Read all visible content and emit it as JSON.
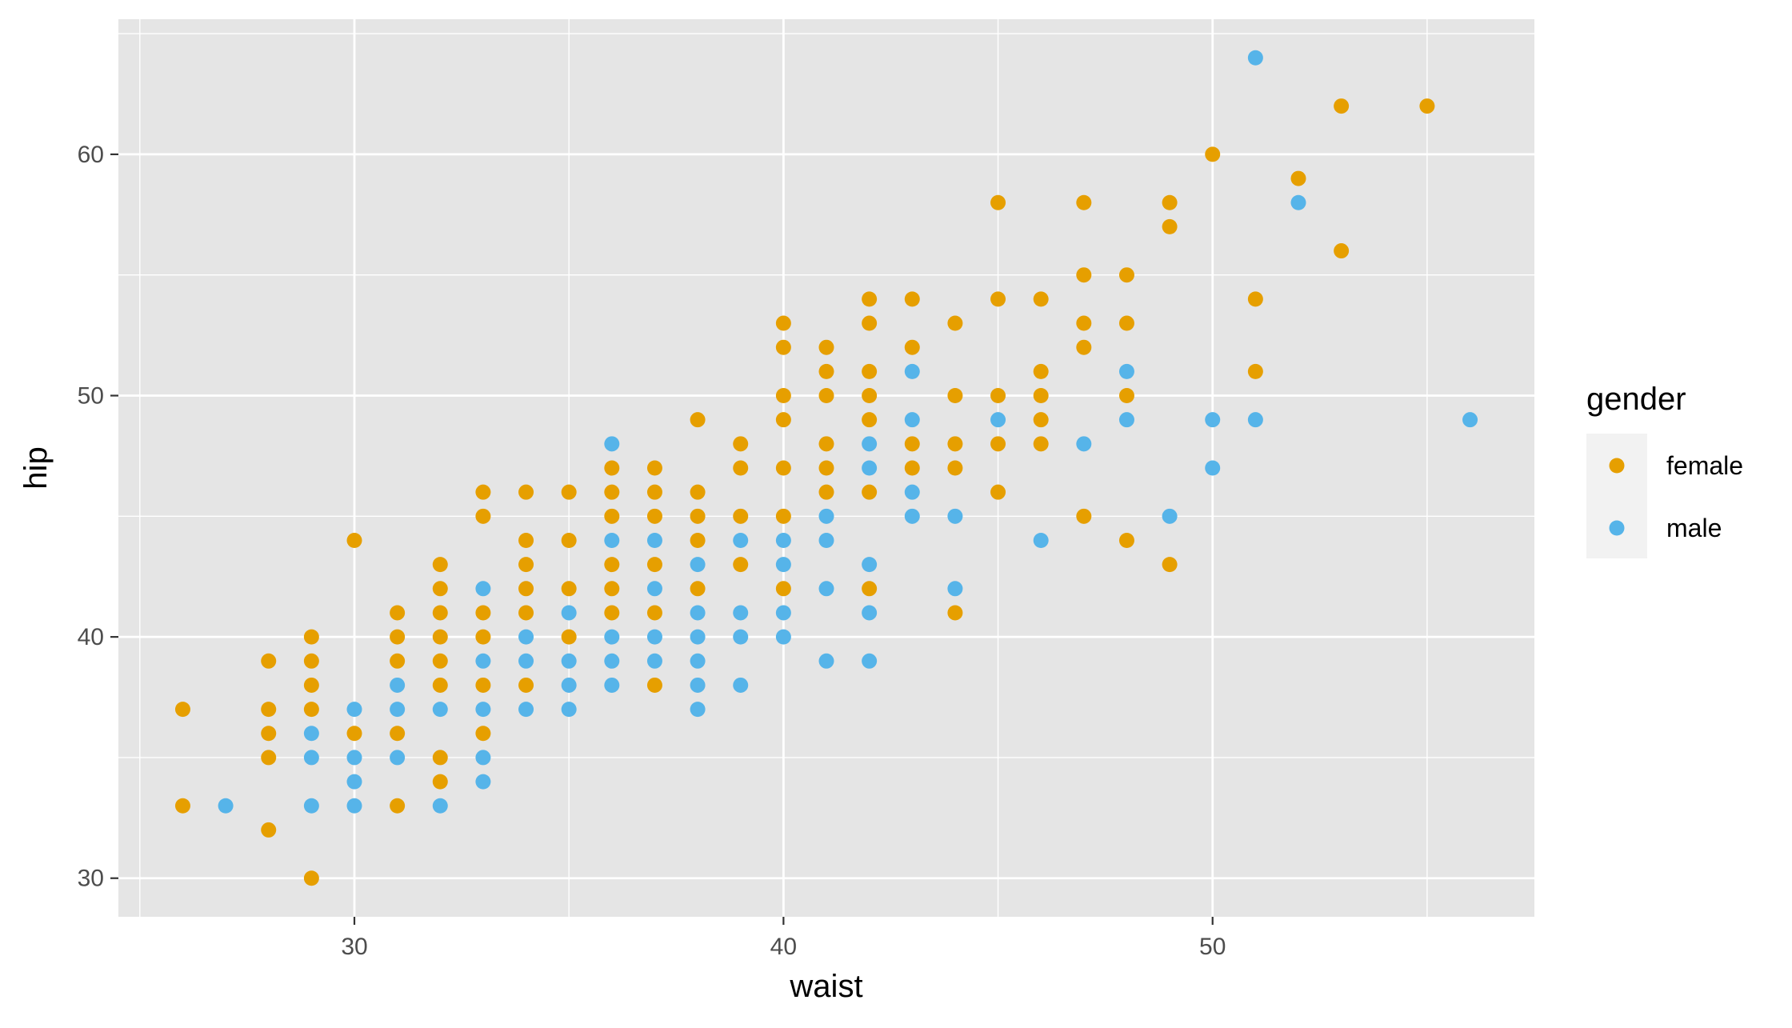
{
  "chart_data": {
    "type": "scatter",
    "title": "",
    "xlabel": "waist",
    "ylabel": "hip",
    "xlim": [
      24.5,
      57.5
    ],
    "ylim": [
      28.4,
      65.6
    ],
    "x_ticks": [
      30,
      40,
      50
    ],
    "y_ticks": [
      30,
      40,
      50,
      60
    ],
    "grid": true,
    "legend": {
      "title": "gender",
      "position": "right"
    },
    "colors": {
      "panel": "#e5e5e5",
      "grid": "#ffffff",
      "female": "#e69f00",
      "male": "#56b4e9"
    },
    "series": [
      {
        "name": "female",
        "points": [
          [
            26,
            37
          ],
          [
            26,
            33
          ],
          [
            28,
            39
          ],
          [
            28,
            37
          ],
          [
            28,
            36
          ],
          [
            28,
            35
          ],
          [
            28,
            32
          ],
          [
            29,
            40
          ],
          [
            29,
            39
          ],
          [
            29,
            38
          ],
          [
            29,
            37
          ],
          [
            29,
            30
          ],
          [
            30,
            44
          ],
          [
            30,
            36
          ],
          [
            31,
            41
          ],
          [
            31,
            40
          ],
          [
            31,
            39
          ],
          [
            31,
            36
          ],
          [
            31,
            33
          ],
          [
            32,
            43
          ],
          [
            32,
            42
          ],
          [
            32,
            41
          ],
          [
            32,
            40
          ],
          [
            32,
            39
          ],
          [
            32,
            38
          ],
          [
            32,
            35
          ],
          [
            32,
            34
          ],
          [
            33,
            46
          ],
          [
            33,
            45
          ],
          [
            33,
            41
          ],
          [
            33,
            40
          ],
          [
            33,
            38
          ],
          [
            33,
            36
          ],
          [
            34,
            46
          ],
          [
            34,
            44
          ],
          [
            34,
            43
          ],
          [
            34,
            42
          ],
          [
            34,
            41
          ],
          [
            34,
            38
          ],
          [
            35,
            46
          ],
          [
            35,
            44
          ],
          [
            35,
            42
          ],
          [
            35,
            40
          ],
          [
            36,
            47
          ],
          [
            36,
            46
          ],
          [
            36,
            45
          ],
          [
            36,
            43
          ],
          [
            36,
            42
          ],
          [
            36,
            41
          ],
          [
            37,
            47
          ],
          [
            37,
            46
          ],
          [
            37,
            45
          ],
          [
            37,
            43
          ],
          [
            37,
            41
          ],
          [
            37,
            38
          ],
          [
            38,
            49
          ],
          [
            38,
            46
          ],
          [
            38,
            45
          ],
          [
            38,
            44
          ],
          [
            38,
            42
          ],
          [
            39,
            48
          ],
          [
            39,
            47
          ],
          [
            39,
            45
          ],
          [
            39,
            43
          ],
          [
            40,
            53
          ],
          [
            40,
            52
          ],
          [
            40,
            50
          ],
          [
            40,
            49
          ],
          [
            40,
            47
          ],
          [
            40,
            45
          ],
          [
            40,
            42
          ],
          [
            41,
            52
          ],
          [
            41,
            51
          ],
          [
            41,
            50
          ],
          [
            41,
            48
          ],
          [
            41,
            47
          ],
          [
            41,
            46
          ],
          [
            42,
            54
          ],
          [
            42,
            53
          ],
          [
            42,
            51
          ],
          [
            42,
            50
          ],
          [
            42,
            49
          ],
          [
            42,
            46
          ],
          [
            42,
            42
          ],
          [
            43,
            54
          ],
          [
            43,
            52
          ],
          [
            43,
            48
          ],
          [
            43,
            47
          ],
          [
            44,
            53
          ],
          [
            44,
            50
          ],
          [
            44,
            48
          ],
          [
            44,
            47
          ],
          [
            44,
            41
          ],
          [
            45,
            58
          ],
          [
            45,
            54
          ],
          [
            45,
            50
          ],
          [
            45,
            48
          ],
          [
            45,
            46
          ],
          [
            46,
            54
          ],
          [
            46,
            51
          ],
          [
            46,
            50
          ],
          [
            46,
            49
          ],
          [
            46,
            48
          ],
          [
            47,
            58
          ],
          [
            47,
            55
          ],
          [
            47,
            53
          ],
          [
            47,
            52
          ],
          [
            47,
            45
          ],
          [
            48,
            55
          ],
          [
            48,
            53
          ],
          [
            48,
            50
          ],
          [
            48,
            44
          ],
          [
            49,
            58
          ],
          [
            49,
            57
          ],
          [
            49,
            43
          ],
          [
            50,
            60
          ],
          [
            51,
            54
          ],
          [
            51,
            51
          ],
          [
            52,
            59
          ],
          [
            53,
            62
          ],
          [
            53,
            56
          ],
          [
            55,
            62
          ]
        ]
      },
      {
        "name": "male",
        "points": [
          [
            27,
            33
          ],
          [
            29,
            36
          ],
          [
            29,
            35
          ],
          [
            29,
            33
          ],
          [
            30,
            37
          ],
          [
            30,
            35
          ],
          [
            30,
            34
          ],
          [
            30,
            33
          ],
          [
            31,
            38
          ],
          [
            31,
            37
          ],
          [
            31,
            35
          ],
          [
            32,
            37
          ],
          [
            32,
            33
          ],
          [
            33,
            42
          ],
          [
            33,
            39
          ],
          [
            33,
            37
          ],
          [
            33,
            35
          ],
          [
            33,
            34
          ],
          [
            34,
            40
          ],
          [
            34,
            39
          ],
          [
            34,
            37
          ],
          [
            35,
            41
          ],
          [
            35,
            39
          ],
          [
            35,
            38
          ],
          [
            35,
            37
          ],
          [
            36,
            48
          ],
          [
            36,
            44
          ],
          [
            36,
            40
          ],
          [
            36,
            39
          ],
          [
            36,
            38
          ],
          [
            37,
            44
          ],
          [
            37,
            42
          ],
          [
            37,
            40
          ],
          [
            37,
            39
          ],
          [
            38,
            43
          ],
          [
            38,
            41
          ],
          [
            38,
            40
          ],
          [
            38,
            39
          ],
          [
            38,
            38
          ],
          [
            38,
            37
          ],
          [
            39,
            44
          ],
          [
            39,
            41
          ],
          [
            39,
            40
          ],
          [
            39,
            38
          ],
          [
            40,
            44
          ],
          [
            40,
            43
          ],
          [
            40,
            41
          ],
          [
            40,
            40
          ],
          [
            41,
            45
          ],
          [
            41,
            44
          ],
          [
            41,
            42
          ],
          [
            41,
            39
          ],
          [
            42,
            48
          ],
          [
            42,
            47
          ],
          [
            42,
            43
          ],
          [
            42,
            41
          ],
          [
            42,
            39
          ],
          [
            43,
            51
          ],
          [
            43,
            49
          ],
          [
            43,
            46
          ],
          [
            43,
            45
          ],
          [
            44,
            45
          ],
          [
            44,
            42
          ],
          [
            45,
            49
          ],
          [
            46,
            44
          ],
          [
            47,
            48
          ],
          [
            48,
            51
          ],
          [
            48,
            49
          ],
          [
            49,
            45
          ],
          [
            50,
            49
          ],
          [
            50,
            47
          ],
          [
            51,
            64
          ],
          [
            51,
            49
          ],
          [
            52,
            58
          ],
          [
            56,
            49
          ]
        ]
      }
    ]
  }
}
